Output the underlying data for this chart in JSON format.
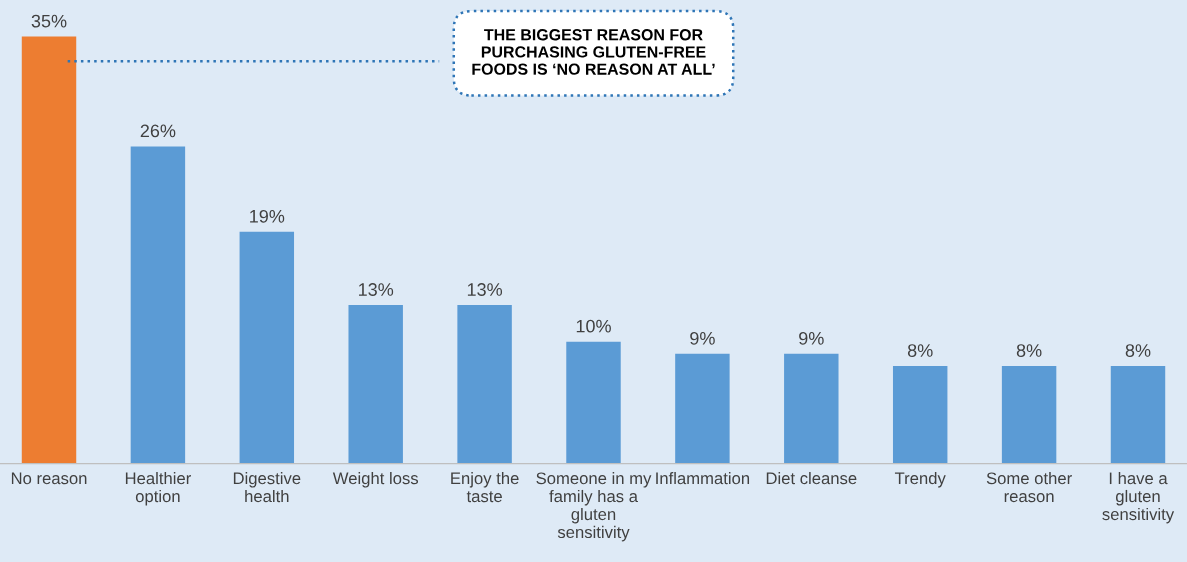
{
  "chart_data": {
    "type": "bar",
    "categories": [
      "No reason",
      "Healthier option",
      "Digestive health",
      "Weight loss",
      "Enjoy the taste",
      "Someone in my family has a gluten sensitivity",
      "Inflammation",
      "Diet cleanse",
      "Trendy",
      "Some other reason",
      "I have a gluten sensitivity"
    ],
    "values": [
      35,
      26,
      19,
      13,
      13,
      10,
      9,
      9,
      8,
      8,
      8
    ],
    "colors": [
      "#ed7d31",
      "#5b9bd5",
      "#5b9bd5",
      "#5b9bd5",
      "#5b9bd5",
      "#5b9bd5",
      "#5b9bd5",
      "#5b9bd5",
      "#5b9bd5",
      "#5b9bd5",
      "#5b9bd5"
    ],
    "value_labels": [
      "35%",
      "26%",
      "19%",
      "13%",
      "13%",
      "10%",
      "9%",
      "9%",
      "8%",
      "8%",
      "8%"
    ],
    "ylim": [
      0,
      38
    ],
    "tick_labels": "x",
    "legend": false,
    "annotations": [
      "THE BIGGEST REASON FOR PURCHASING GLUTEN-FREE FOODS IS ‘NO REASON AT ALL’"
    ]
  }
}
